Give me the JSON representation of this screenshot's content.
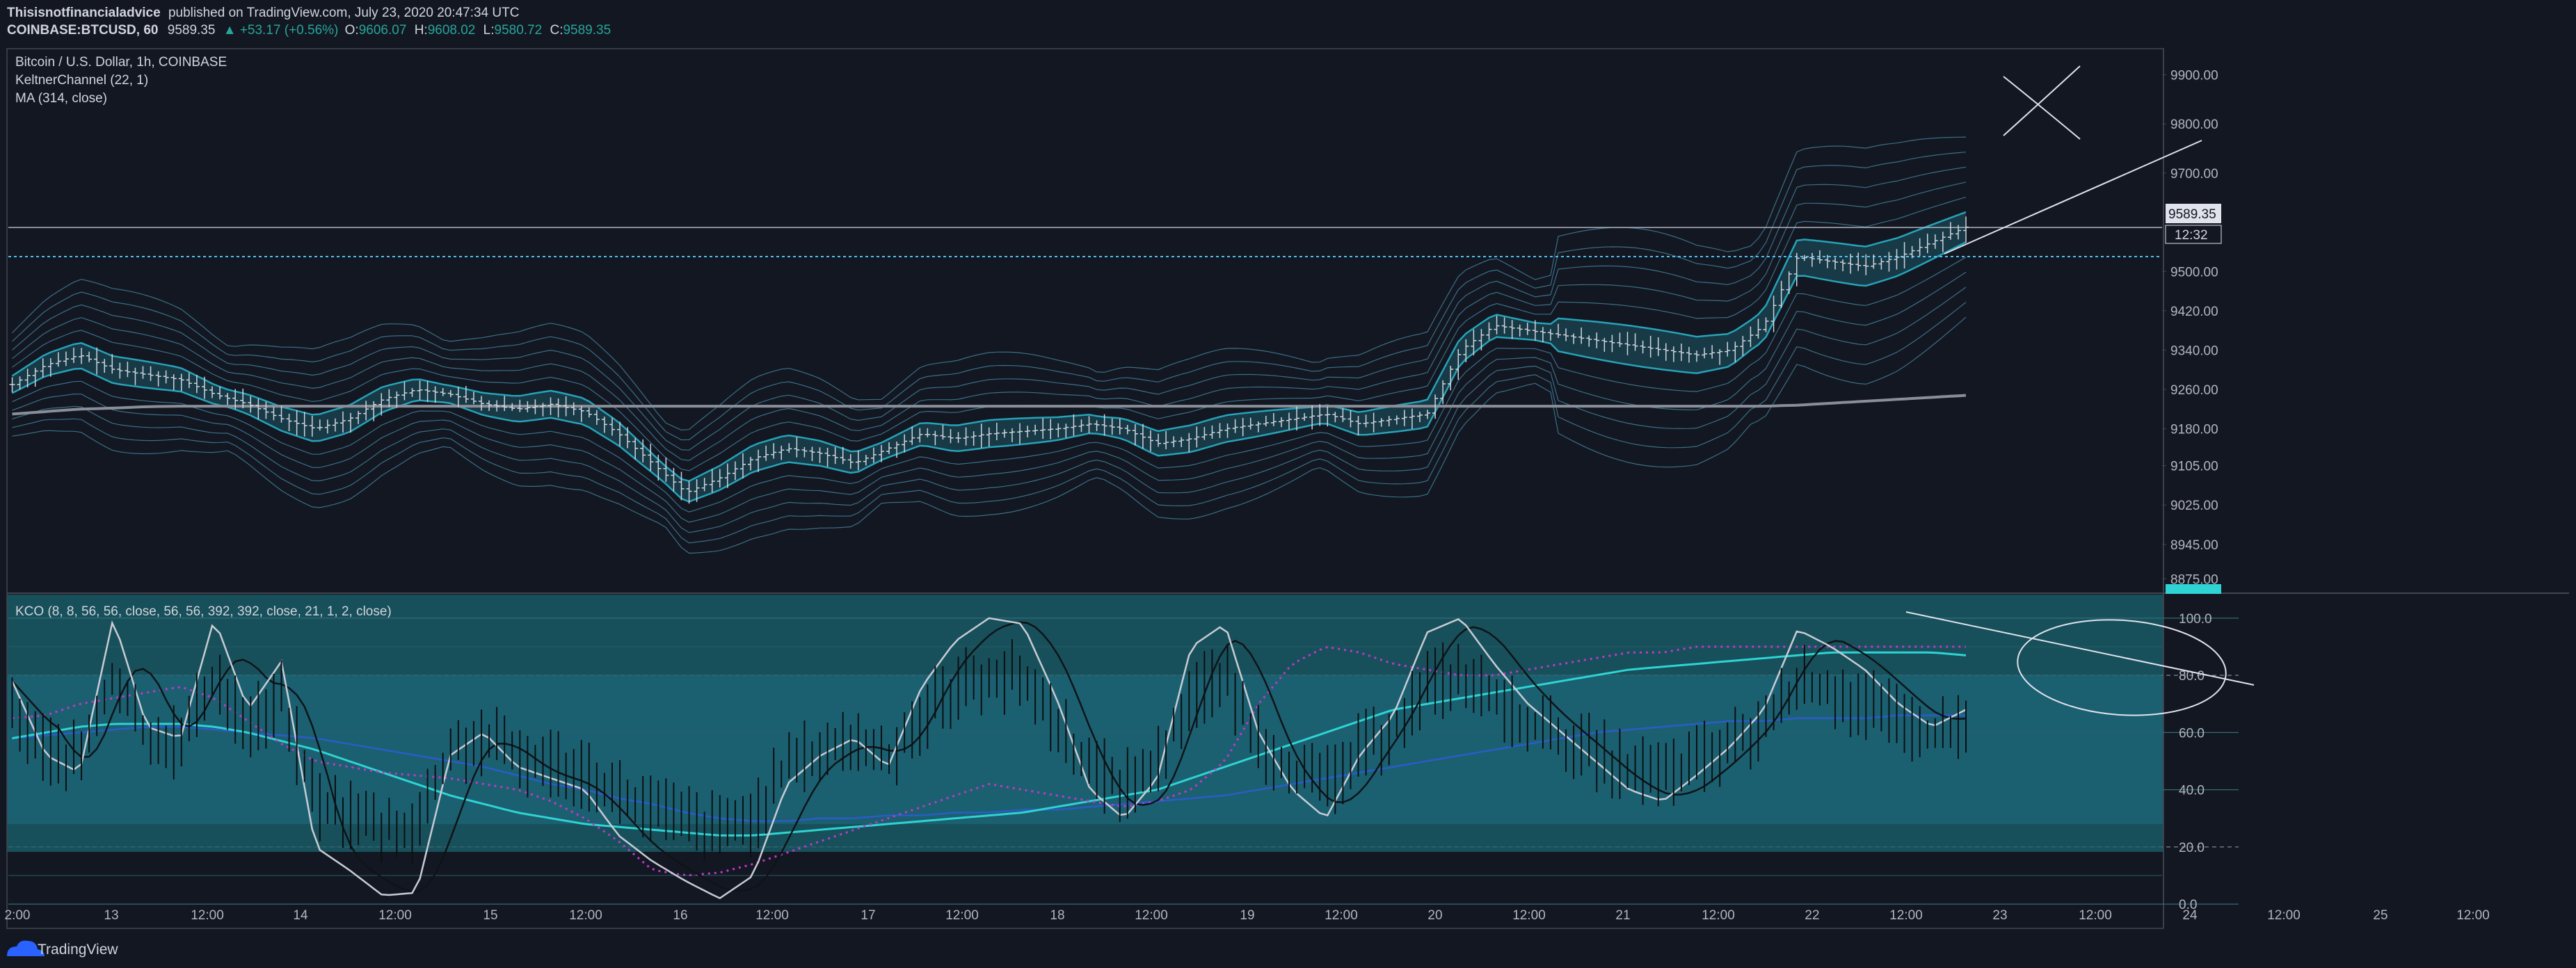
{
  "header": {
    "author": "Thisisnotfinancialadvice",
    "published": "published on TradingView.com, July 23, 2020 20:47:34 UTC",
    "symbol": "COINBASE:BTCUSD, 60",
    "last": "9589.35",
    "change": "▲ +53.17 (+0.56%)",
    "o_label": "O:",
    "o": "9606.07",
    "h_label": "H:",
    "h": "9608.02",
    "l_label": "L:",
    "l": "9580.72",
    "c_label": "C:",
    "c": "9589.35"
  },
  "legend": {
    "title": "Bitcoin / U.S. Dollar, 1h, COINBASE",
    "indicator1": "KeltnerChannel (22, 1)",
    "indicator2": "MA (314, close)",
    "indicator3": "KCO (8, 8, 56, 56, close, 56, 56, 392, 392, close, 21, 1, 2, close)"
  },
  "price_tags": {
    "last": "9589.35",
    "countdown": "12:32"
  },
  "brand": "TradingView",
  "colors": {
    "background": "#131722",
    "candle": "#d1d4dc",
    "channel": "#26a3b8",
    "channel_faint": "#3a6f86",
    "ma": "#8a8e99",
    "level": "#4fc3f7",
    "osc_panel": "#17505b",
    "purple": "#c038c8",
    "cyan": "#2fd3d3",
    "blue": "#2a5cc8"
  },
  "chart_data": [
    {
      "type": "line",
      "name": "price",
      "title": "Bitcoin / U.S. Dollar, 1h, COINBASE",
      "yticks": [
        "9900.00",
        "9800.00",
        "9700.00",
        "9589.35",
        "9500.00",
        "9420.00",
        "9340.00",
        "9260.00",
        "9180.00",
        "9105.00",
        "9025.00",
        "8945.00",
        "8875.00"
      ],
      "xticks": [
        "2:00",
        "13",
        "12:00",
        "14",
        "12:00",
        "15",
        "12:00",
        "16",
        "12:00",
        "17",
        "12:00",
        "18",
        "12:00",
        "19",
        "12:00",
        "20",
        "12:00",
        "21",
        "12:00",
        "22",
        "12:00",
        "23",
        "12:00",
        "24",
        "12:00",
        "25",
        "12:00"
      ],
      "ylim": [
        8850,
        9950
      ],
      "horizontal_levels": [
        9589.35,
        9530
      ],
      "close_series": [
        9270,
        9310,
        9330,
        9300,
        9290,
        9280,
        9250,
        9230,
        9200,
        9180,
        9200,
        9240,
        9260,
        9250,
        9230,
        9220,
        9230,
        9215,
        9170,
        9110,
        9050,
        9080,
        9120,
        9140,
        9130,
        9110,
        9140,
        9170,
        9160,
        9170,
        9175,
        9180,
        9190,
        9180,
        9150,
        9160,
        9180,
        9190,
        9200,
        9210,
        9190,
        9200,
        9210,
        9340,
        9390,
        9380,
        9370,
        9360,
        9350,
        9340,
        9330,
        9340,
        9390,
        9530,
        9520,
        9510,
        9530,
        9560,
        9590
      ],
      "ma_series": [
        9210,
        9215,
        9220,
        9222,
        9225,
        9226,
        9226,
        9226,
        9226,
        9226,
        9226,
        9226,
        9226,
        9226,
        9226,
        9226,
        9226,
        9226,
        9226,
        9226,
        9226,
        9226,
        9226,
        9226,
        9226,
        9226,
        9226,
        9226,
        9226,
        9226,
        9226,
        9226,
        9226,
        9226,
        9226,
        9226,
        9226,
        9226,
        9226,
        9226,
        9226,
        9226,
        9226,
        9226,
        9226,
        9226,
        9226,
        9226,
        9226,
        9226,
        9226,
        9226,
        9226,
        9228,
        9232,
        9236,
        9240,
        9244,
        9248
      ]
    },
    {
      "type": "line",
      "name": "KCO",
      "title": "KCO (8, 8, 56, 56, close, 56, 56, 392, 392, close, 21, 1, 2, close)",
      "yticks": [
        "100.0",
        "80.0",
        "60.0",
        "40.0",
        "20.0",
        "0.0"
      ],
      "ylim": [
        -8,
        108
      ],
      "bands": [
        20,
        80
      ],
      "fast_series": [
        78,
        52,
        46,
        100,
        62,
        58,
        100,
        68,
        85,
        20,
        12,
        3,
        4,
        52,
        60,
        48,
        44,
        40,
        24,
        15,
        8,
        2,
        10,
        42,
        52,
        58,
        48,
        76,
        92,
        100,
        98,
        72,
        40,
        30,
        44,
        90,
        98,
        60,
        40,
        30,
        52,
        66,
        95,
        100,
        84,
        70,
        60,
        50,
        40,
        36,
        45,
        55,
        68,
        96,
        90,
        82,
        70,
        62,
        68
      ],
      "cyan_series": [
        58,
        60,
        62,
        63,
        63,
        63,
        62,
        60,
        57,
        54,
        50,
        46,
        42,
        38,
        35,
        32,
        30,
        28,
        27,
        26,
        25,
        24,
        24,
        25,
        26,
        27,
        28,
        29,
        30,
        31,
        32,
        34,
        36,
        38,
        40,
        44,
        48,
        52,
        56,
        60,
        64,
        68,
        70,
        72,
        74,
        76,
        78,
        80,
        82,
        83,
        84,
        85,
        86,
        87,
        88,
        88,
        88,
        88,
        87
      ],
      "blue_series": [
        58,
        59,
        60,
        61,
        62,
        62,
        61,
        60,
        59,
        58,
        56,
        54,
        52,
        50,
        48,
        45,
        42,
        40,
        37,
        35,
        32,
        30,
        29,
        29,
        30,
        30,
        31,
        31,
        32,
        32,
        33,
        33,
        34,
        35,
        36,
        37,
        38,
        40,
        42,
        44,
        46,
        48,
        50,
        52,
        54,
        56,
        58,
        60,
        61,
        62,
        63,
        64,
        64,
        65,
        65,
        65,
        66,
        66,
        66
      ],
      "purple_series": [
        65,
        66,
        70,
        72,
        74,
        76,
        72,
        64,
        56,
        50,
        48,
        46,
        45,
        44,
        42,
        40,
        36,
        30,
        22,
        12,
        10,
        11,
        14,
        18,
        22,
        26,
        30,
        34,
        38,
        42,
        40,
        38,
        36,
        34,
        36,
        40,
        50,
        70,
        84,
        90,
        88,
        84,
        82,
        80,
        80,
        82,
        84,
        86,
        88,
        88,
        90,
        90,
        90,
        90,
        90,
        90,
        90,
        90,
        90
      ]
    }
  ]
}
